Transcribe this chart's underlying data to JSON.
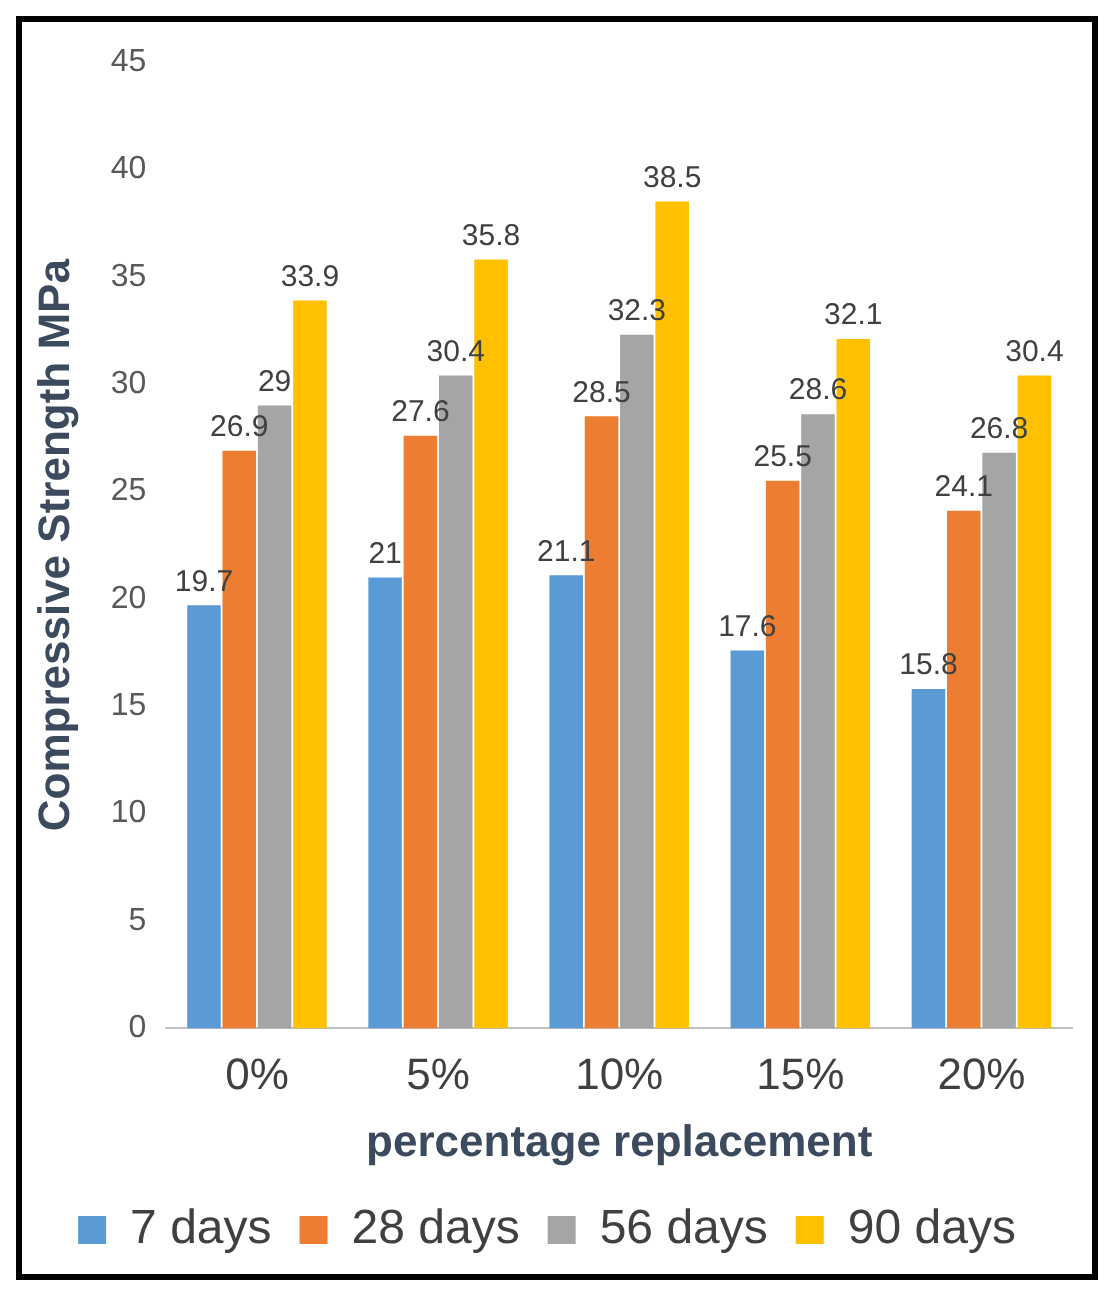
{
  "chart_data": {
    "type": "bar",
    "xlabel": "percentage replacement",
    "ylabel": "Compressive Strength MPa",
    "categories": [
      "0%",
      "5%",
      "10%",
      "15%",
      "20%"
    ],
    "series": [
      {
        "name": "7 days",
        "color": "#5b9bd5",
        "values": [
          19.7,
          21,
          21.1,
          17.6,
          15.8
        ]
      },
      {
        "name": "28 days",
        "color": "#ed7d31",
        "values": [
          26.9,
          27.6,
          28.5,
          25.5,
          24.1
        ]
      },
      {
        "name": "56 days",
        "color": "#a5a5a5",
        "values": [
          29,
          30.4,
          32.3,
          28.6,
          26.8
        ]
      },
      {
        "name": "90 days",
        "color": "#ffc000",
        "values": [
          33.9,
          35.8,
          38.5,
          32.1,
          30.4
        ]
      }
    ],
    "ylim": [
      0,
      45
    ],
    "yticks": [
      0,
      5,
      10,
      15,
      20,
      25,
      30,
      35,
      40,
      45
    ],
    "grid": false,
    "legend": "bottom",
    "data_labels": true
  }
}
